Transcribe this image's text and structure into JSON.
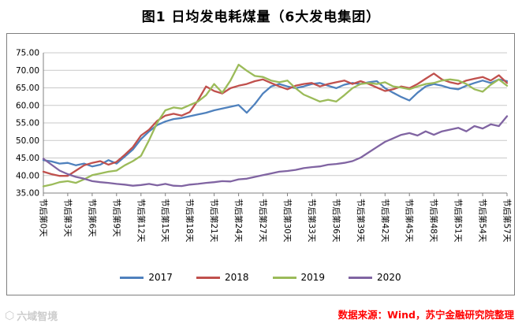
{
  "title": "图1 日均发电耗煤量（6大发电集团）",
  "source_note": "数据来源：Wind，苏宁金融研究院整理",
  "watermark": "六域智境",
  "colors": {
    "source_text": "#ff0000",
    "watermark": "#cccccc",
    "gridline": "#c9c9c9",
    "axis": "#808080"
  },
  "chart_data": {
    "type": "line",
    "title": "图1 日均发电耗煤量（6大发电集团）",
    "xlabel": "",
    "ylabel": "",
    "ylim": [
      35,
      75
    ],
    "yticks": [
      35,
      40,
      45,
      50,
      55,
      60,
      65,
      70,
      75
    ],
    "ytick_decimals": 2,
    "grid": true,
    "legend_position": "bottom",
    "x_count": 58,
    "x_label_step": 3,
    "x_labels": [
      "节后第0天",
      "节后第3天",
      "节后第6天",
      "节后第9天",
      "节后第12天",
      "节后第15天",
      "节后第18天",
      "节后第21天",
      "节后第24天",
      "节后第27天",
      "节后第30天",
      "节后第33天",
      "节后第36天",
      "节后第39天",
      "节后第42天",
      "节后第45天",
      "节后第48天",
      "节后第51天",
      "节后第54天",
      "节后第57天"
    ],
    "series": [
      {
        "name": "2017",
        "color": "#4F81BD",
        "values": [
          44.4,
          44.0,
          43.4,
          43.6,
          42.9,
          43.4,
          42.6,
          43.1,
          44.4,
          43.4,
          45.4,
          47.4,
          50.4,
          52.6,
          54.4,
          55.4,
          56.1,
          56.4,
          56.9,
          57.4,
          57.9,
          58.6,
          59.1,
          59.6,
          60.1,
          57.9,
          60.4,
          63.4,
          65.4,
          66.1,
          65.4,
          64.9,
          65.4,
          66.1,
          66.4,
          65.6,
          64.9,
          65.9,
          66.4,
          66.1,
          66.6,
          66.9,
          64.9,
          63.6,
          62.4,
          61.4,
          63.6,
          65.4,
          66.1,
          65.6,
          64.9,
          64.6,
          65.6,
          66.4,
          67.1,
          66.4,
          67.4,
          66.9
        ]
      },
      {
        "name": "2018",
        "color": "#C0504D",
        "values": [
          41.1,
          40.4,
          39.9,
          39.9,
          41.4,
          42.9,
          43.6,
          44.1,
          43.1,
          43.9,
          45.9,
          48.1,
          51.4,
          53.1,
          55.6,
          57.1,
          57.6,
          57.1,
          58.1,
          61.4,
          65.4,
          64.1,
          63.4,
          64.9,
          65.6,
          66.1,
          66.9,
          67.4,
          66.4,
          65.4,
          64.6,
          65.6,
          66.1,
          66.4,
          65.4,
          66.1,
          66.6,
          67.1,
          66.1,
          66.9,
          66.1,
          65.1,
          64.1,
          64.6,
          65.4,
          64.9,
          66.1,
          67.6,
          69.1,
          67.4,
          66.6,
          66.1,
          67.1,
          67.6,
          68.1,
          67.1,
          68.6,
          66.4
        ]
      },
      {
        "name": "2019",
        "color": "#9BBB59",
        "values": [
          36.9,
          37.4,
          38.1,
          38.4,
          37.9,
          38.9,
          40.1,
          40.6,
          41.1,
          41.4,
          42.9,
          44.1,
          45.6,
          50.1,
          55.1,
          58.6,
          59.4,
          59.1,
          60.1,
          61.1,
          62.9,
          66.1,
          63.6,
          67.1,
          71.6,
          69.9,
          68.4,
          68.1,
          67.1,
          66.6,
          67.1,
          64.9,
          63.1,
          62.1,
          61.1,
          61.6,
          61.1,
          62.9,
          64.9,
          66.1,
          66.4,
          66.1,
          66.6,
          65.4,
          65.1,
          64.6,
          65.4,
          66.1,
          66.4,
          67.1,
          67.4,
          67.1,
          66.1,
          64.6,
          63.9,
          65.9,
          67.4,
          65.6
        ]
      },
      {
        "name": "2020",
        "color": "#8064A2",
        "values": [
          44.8,
          43.1,
          41.4,
          40.4,
          39.6,
          39.1,
          38.4,
          38.1,
          37.9,
          37.6,
          37.4,
          37.1,
          37.3,
          37.6,
          37.2,
          37.6,
          37.1,
          37.0,
          37.4,
          37.6,
          37.9,
          38.1,
          38.4,
          38.3,
          38.9,
          39.1,
          39.6,
          40.1,
          40.6,
          41.1,
          41.3,
          41.6,
          42.1,
          42.4,
          42.6,
          43.1,
          43.3,
          43.6,
          44.1,
          45.1,
          46.6,
          48.1,
          49.6,
          50.6,
          51.6,
          52.1,
          51.4,
          52.6,
          51.6,
          52.6,
          53.1,
          53.6,
          52.6,
          54.1,
          53.4,
          54.6,
          54.1,
          56.9
        ]
      }
    ]
  }
}
